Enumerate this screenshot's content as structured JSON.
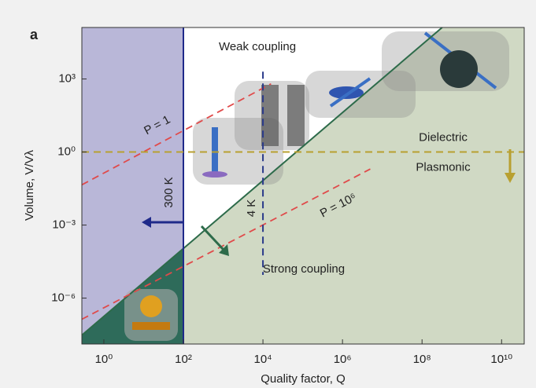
{
  "chart_data": {
    "type": "regions",
    "panel_label": "a",
    "x_label": "Quality factor, Q",
    "y_label": "Volume, V/Vλ",
    "log_x": true,
    "log_y": true,
    "xlim": [
      0.28,
      37000000000.0
    ],
    "ylim": [
      1.3e-08,
      130000.0
    ],
    "xticks": [
      {
        "value": 1,
        "label": "10⁰"
      },
      {
        "value": 100,
        "label": "10²"
      },
      {
        "value": 10000,
        "label": "10⁴"
      },
      {
        "value": 1000000,
        "label": "10⁶"
      },
      {
        "value": 100000000,
        "label": "10⁸"
      },
      {
        "value": 10000000000,
        "label": "10¹⁰"
      }
    ],
    "yticks": [
      {
        "value": 1000,
        "label": "10³"
      },
      {
        "value": 1,
        "label": "10⁰"
      },
      {
        "value": 0.001,
        "label": "10⁻³"
      },
      {
        "value": 1e-06,
        "label": "10⁻⁶"
      }
    ],
    "coupling_boundary": {
      "x": [
        0.28,
        320000000.0
      ],
      "y": [
        3e-08,
        130000.0
      ],
      "color": "#2d6b4a",
      "label_above": "Weak coupling",
      "label_below": "Strong coupling"
    },
    "region_colors": {
      "cold": "#b9b7d8",
      "weak": "#ffffff",
      "strong": "#d0d9c4",
      "strong_cold": "#2e6b5a"
    },
    "vlines": [
      {
        "x": 100,
        "label": "300 K",
        "color": "#1f2a8a",
        "dashed": false
      },
      {
        "x": 10000,
        "label": "4 K",
        "color": "#2a3a8a",
        "dashed": true,
        "ymin": 9e-06,
        "ymax": 2000
      }
    ],
    "hline": {
      "y": 1,
      "color": "#b8a030",
      "label_above": "Dielectric",
      "label_below": "Plasmonic"
    },
    "power_lines": [
      {
        "label": "P = 1",
        "color": "#e04a4a",
        "x": [
          0.28,
          16000
        ],
        "y": [
          0.045,
          630
        ]
      },
      {
        "label": "P = 10⁶",
        "color": "#e04a4a",
        "x": [
          0.28,
          5000000
        ],
        "y": [
          1.35e-07,
          0.2
        ]
      }
    ]
  }
}
